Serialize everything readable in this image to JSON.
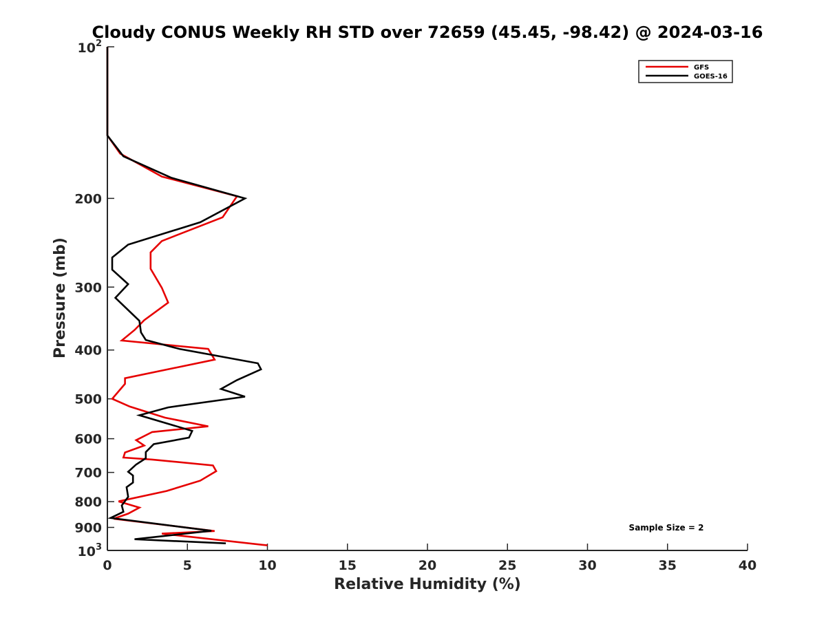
{
  "chart_data": {
    "type": "line",
    "title": "Cloudy CONUS Weekly RH STD over 72659 (45.45, -98.42) @ 2024-03-16",
    "xlabel": "Relative Humidity (%)",
    "ylabel": "Pressure (mb)",
    "xlim": [
      0,
      40
    ],
    "ylim": [
      1000,
      100
    ],
    "y_scale": "log",
    "y_reversed": true,
    "x_ticks": [
      0,
      5,
      10,
      15,
      20,
      25,
      30,
      35,
      40
    ],
    "x_tick_labels": [
      "0",
      "5",
      "10",
      "15",
      "20",
      "25",
      "30",
      "35",
      "40"
    ],
    "y_ticks": [
      200,
      300,
      400,
      500,
      600,
      700,
      800,
      900
    ],
    "y_tick_labels": [
      "200",
      "300",
      "400",
      "500",
      "600",
      "700",
      "800",
      "900"
    ],
    "y_decade_ticks": [
      {
        "value": 100,
        "base": "10",
        "exp": "2"
      },
      {
        "value": 1000,
        "base": "10",
        "exp": "3"
      }
    ],
    "grid": false,
    "legend_position": "top-right",
    "annotation": "Sample Size = 2",
    "series": [
      {
        "name": "GFS",
        "color": "#e60000",
        "points": [
          [
            0,
            100
          ],
          [
            0,
            150
          ],
          [
            0.8,
            163
          ],
          [
            3.4,
            181
          ],
          [
            8.1,
            198
          ],
          [
            7.2,
            218
          ],
          [
            3.4,
            243
          ],
          [
            2.7,
            256
          ],
          [
            2.7,
            276
          ],
          [
            3.4,
            301
          ],
          [
            3.8,
            322
          ],
          [
            2.3,
            349
          ],
          [
            1.7,
            365
          ],
          [
            0.9,
            383
          ],
          [
            6.3,
            398
          ],
          [
            6.7,
            418
          ],
          [
            1.1,
            455
          ],
          [
            1.1,
            467
          ],
          [
            0.3,
            500
          ],
          [
            1.4,
            518
          ],
          [
            3.6,
            545
          ],
          [
            6.3,
            567
          ],
          [
            2.8,
            582
          ],
          [
            1.8,
            604
          ],
          [
            2.3,
            619
          ],
          [
            1.1,
            639
          ],
          [
            1.0,
            654
          ],
          [
            2.8,
            660
          ],
          [
            6.6,
            678
          ],
          [
            6.8,
            696
          ],
          [
            5.8,
            727
          ],
          [
            3.7,
            762
          ],
          [
            0.7,
            799
          ],
          [
            2.0,
            822
          ],
          [
            1.3,
            845
          ],
          [
            0.4,
            865
          ],
          [
            6.7,
            915
          ],
          [
            3.4,
            926
          ],
          [
            10.0,
            977
          ]
        ]
      },
      {
        "name": "GOES-16",
        "color": "#000000",
        "points": [
          [
            0,
            100
          ],
          [
            0,
            150
          ],
          [
            1.0,
            165
          ],
          [
            4.0,
            182
          ],
          [
            8.6,
            200
          ],
          [
            5.8,
            223
          ],
          [
            1.3,
            247
          ],
          [
            0.3,
            262
          ],
          [
            0.3,
            277
          ],
          [
            1.3,
            296
          ],
          [
            0.5,
            315
          ],
          [
            2.0,
            350
          ],
          [
            2.1,
            369
          ],
          [
            2.4,
            382
          ],
          [
            4.5,
            398
          ],
          [
            9.4,
            425
          ],
          [
            9.6,
            437
          ],
          [
            8.1,
            459
          ],
          [
            7.1,
            478
          ],
          [
            8.6,
            495
          ],
          [
            3.8,
            520
          ],
          [
            2.0,
            539
          ],
          [
            5.3,
            579
          ],
          [
            5.1,
            597
          ],
          [
            2.9,
            615
          ],
          [
            2.4,
            638
          ],
          [
            2.4,
            656
          ],
          [
            1.8,
            675
          ],
          [
            1.3,
            698
          ],
          [
            1.6,
            710
          ],
          [
            1.6,
            733
          ],
          [
            1.2,
            749
          ],
          [
            1.3,
            783
          ],
          [
            0.9,
            814
          ],
          [
            1.0,
            838
          ],
          [
            0.2,
            862
          ],
          [
            6.5,
            914
          ],
          [
            1.7,
            950
          ],
          [
            7.4,
            968
          ]
        ]
      }
    ]
  }
}
